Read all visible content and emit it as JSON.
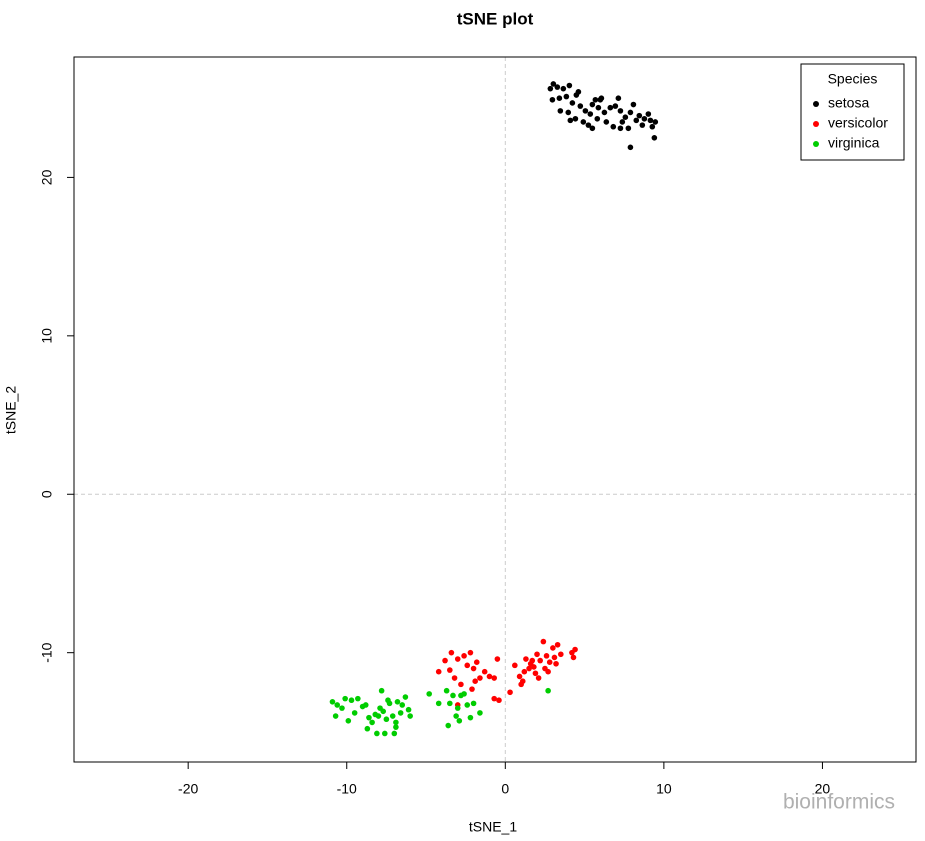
{
  "chart_data": {
    "type": "scatter",
    "title": "tSNE plot",
    "xlabel": "tSNE_1",
    "ylabel": "tSNE_2",
    "legend_title": "Species",
    "legend": "top-right",
    "zero_lines": true,
    "watermark": "bioinformics",
    "xlim": [
      -27.2,
      25.9
    ],
    "ylim": [
      -16.9,
      27.6
    ],
    "xticks": [
      -20,
      -10,
      0,
      10,
      20
    ],
    "yticks": [
      -10,
      0,
      10,
      20
    ],
    "series": [
      {
        "name": "setosa",
        "color": "#000000",
        "x": [
          2.84,
          3.03,
          3.28,
          3.66,
          4.04,
          2.97,
          3.41,
          3.85,
          4.23,
          4.48,
          4.61,
          3.47,
          3.97,
          4.42,
          4.73,
          5.05,
          5.36,
          5.49,
          5.68,
          5.87,
          6.06,
          6.25,
          5.24,
          5.49,
          5.8,
          6.37,
          6.81,
          7.13,
          7.26,
          7.38,
          7.57,
          7.76,
          7.89,
          8.08,
          8.26,
          8.45,
          8.64,
          8.77,
          9.02,
          9.15,
          9.27,
          9.46,
          9.4,
          7.89,
          7.26,
          6.62,
          4.92,
          4.1,
          5.99,
          6.94
        ],
        "values": [
          25.6,
          25.9,
          25.7,
          25.6,
          25.8,
          24.9,
          25.0,
          25.1,
          24.7,
          25.2,
          25.4,
          24.2,
          24.1,
          23.7,
          24.5,
          24.2,
          24.0,
          24.6,
          24.9,
          24.4,
          25.0,
          24.1,
          23.3,
          23.1,
          23.7,
          23.5,
          23.2,
          25.0,
          24.2,
          23.5,
          23.8,
          23.1,
          24.1,
          24.6,
          23.6,
          23.9,
          23.3,
          23.7,
          24.0,
          23.6,
          23.2,
          23.5,
          22.5,
          21.9,
          23.1,
          24.4,
          23.5,
          23.6,
          24.9,
          24.5
        ]
      },
      {
        "name": "versicolor",
        "color": "#ff0000",
        "x": [
          -4.2,
          -3.8,
          -3.4,
          -3.0,
          -3.2,
          -2.6,
          -2.4,
          -2.2,
          -2.0,
          -1.8,
          -1.6,
          -1.3,
          -1.0,
          -0.7,
          -0.5,
          -0.4,
          -0.7,
          -2.1,
          -3.0,
          0.6,
          0.9,
          1.0,
          1.2,
          1.3,
          1.5,
          1.6,
          1.8,
          1.9,
          2.0,
          2.2,
          2.4,
          2.5,
          2.6,
          2.8,
          3.0,
          3.1,
          3.2,
          3.3,
          3.5,
          4.2,
          4.4,
          4.3,
          1.1,
          2.1,
          -3.5,
          -1.9,
          0.3,
          2.7,
          -2.8,
          1.7
        ],
        "values": [
          -11.2,
          -10.5,
          -10.0,
          -10.4,
          -11.6,
          -10.2,
          -10.8,
          -10.0,
          -11.0,
          -10.6,
          -11.6,
          -11.2,
          -11.5,
          -11.6,
          -10.4,
          -13.0,
          -12.9,
          -12.3,
          -13.3,
          -10.8,
          -11.5,
          -12.0,
          -11.2,
          -10.4,
          -11.0,
          -10.7,
          -10.9,
          -11.3,
          -10.1,
          -10.5,
          -9.3,
          -11.0,
          -10.2,
          -10.6,
          -9.7,
          -10.3,
          -10.7,
          -9.5,
          -10.1,
          -10.0,
          -9.8,
          -10.3,
          -11.8,
          -11.6,
          -11.1,
          -11.8,
          -12.5,
          -11.2,
          -12.0,
          -10.5
        ]
      },
      {
        "name": "virginica",
        "color": "#00cd00",
        "x": [
          -10.9,
          -10.6,
          -10.3,
          -10.7,
          -10.1,
          -9.7,
          -9.3,
          -9.9,
          -9.0,
          -8.6,
          -8.4,
          -8.2,
          -8.0,
          -7.9,
          -7.7,
          -7.8,
          -7.5,
          -7.3,
          -7.1,
          -6.9,
          -6.8,
          -6.5,
          -6.3,
          -6.1,
          -6.0,
          -8.7,
          -8.1,
          -7.6,
          -7.0,
          -6.9,
          -4.8,
          -3.7,
          -3.5,
          -3.3,
          -3.0,
          -2.8,
          -2.6,
          -3.1,
          -2.9,
          -3.6,
          -2.4,
          -2.0,
          -1.6,
          -4.2,
          2.7,
          -9.5,
          -8.8,
          -7.4,
          -6.6,
          -2.2
        ],
        "values": [
          -13.1,
          -13.3,
          -13.5,
          -14.0,
          -12.9,
          -13.0,
          -12.9,
          -14.3,
          -13.4,
          -14.1,
          -14.4,
          -13.9,
          -14.0,
          -13.5,
          -13.7,
          -12.4,
          -14.2,
          -13.2,
          -14.0,
          -14.4,
          -13.1,
          -13.3,
          -12.8,
          -13.6,
          -14.0,
          -14.8,
          -15.1,
          -15.1,
          -15.1,
          -14.7,
          -12.6,
          -12.4,
          -13.2,
          -12.7,
          -13.5,
          -12.7,
          -12.6,
          -14.0,
          -14.3,
          -14.6,
          -13.3,
          -13.2,
          -13.8,
          -13.2,
          -12.4,
          -13.8,
          -13.3,
          -13.0,
          -13.8,
          -14.1
        ]
      }
    ]
  }
}
